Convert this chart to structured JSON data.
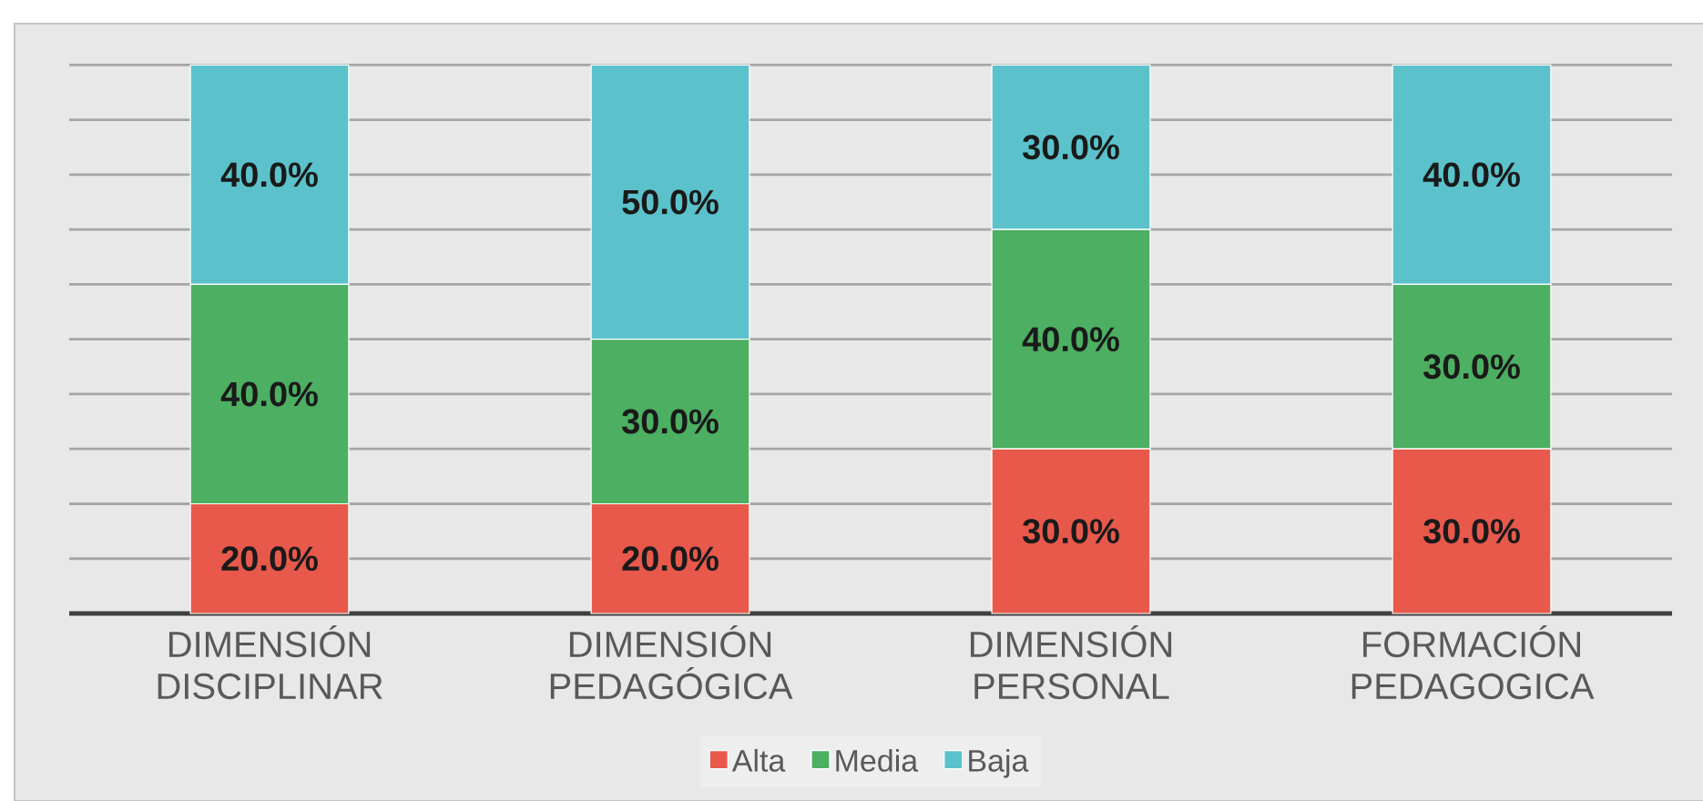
{
  "chart_data": {
    "type": "bar",
    "stacked": true,
    "categories": [
      "DIMENSIÓN DISCIPLINAR",
      "DIMENSIÓN PEDAGÓGICA",
      "DIMENSIÓN PERSONAL",
      "FORMACIÓN PEDAGOGICA"
    ],
    "series": [
      {
        "name": "Alta",
        "color": "#e8594b",
        "values": [
          20,
          20,
          30,
          30
        ],
        "value_labels": [
          "20.0%",
          "20.0%",
          "30.0%",
          "30.0%"
        ]
      },
      {
        "name": "Media",
        "color": "#4caf62",
        "values": [
          40,
          30,
          40,
          30
        ],
        "value_labels": [
          "40.0%",
          "30.0%",
          "40.0%",
          "30.0%"
        ]
      },
      {
        "name": "Baja",
        "color": "#5bc2cb",
        "values": [
          40,
          50,
          30,
          40
        ],
        "value_labels": [
          "40.0%",
          "50.0%",
          "30.0%",
          "40.0%"
        ]
      }
    ],
    "ylim": [
      0,
      100
    ],
    "yticks": [
      0,
      10,
      20,
      30,
      40,
      50,
      60,
      70,
      80,
      90,
      100
    ],
    "tick_labels": "x",
    "grid": "y",
    "legend": "bottom"
  }
}
